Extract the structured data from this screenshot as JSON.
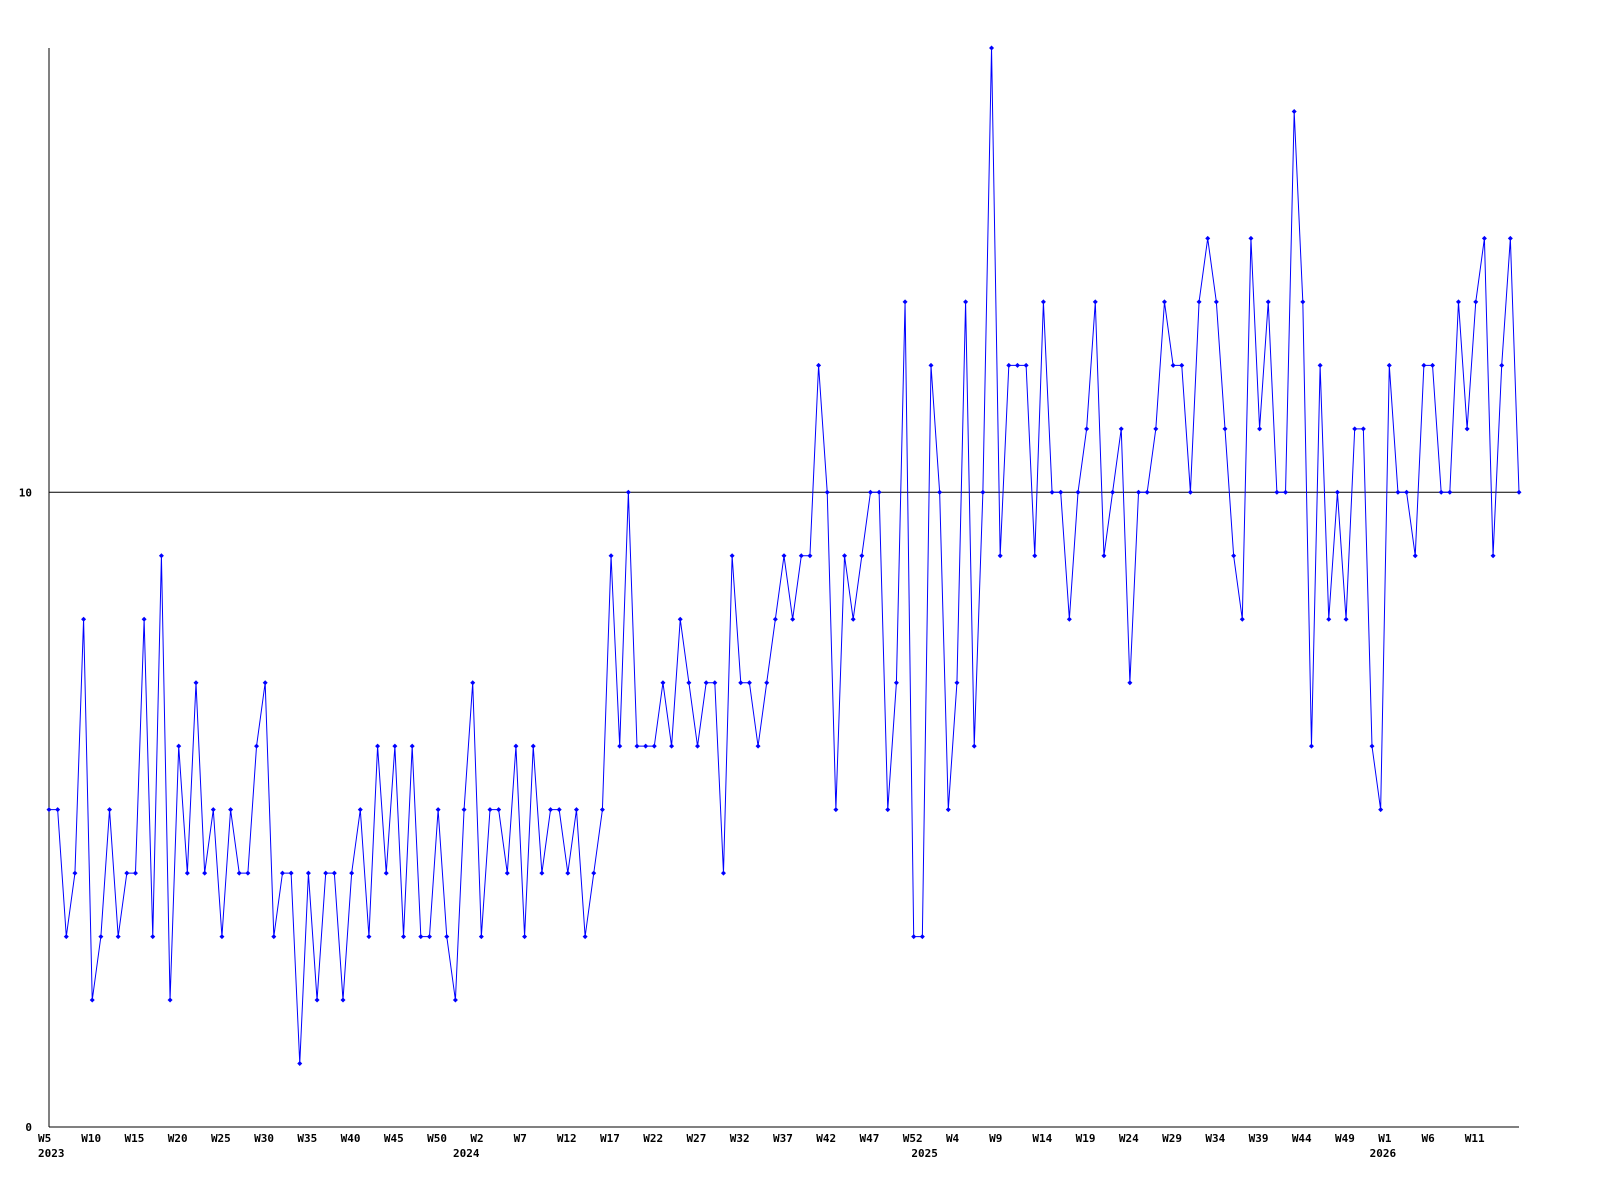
{
  "chart_data": {
    "type": "line",
    "categories": [
      "W5",
      null,
      null,
      null,
      null,
      "W10",
      null,
      null,
      null,
      null,
      "W15",
      null,
      null,
      null,
      null,
      "W20",
      null,
      null,
      null,
      null,
      "W25",
      null,
      null,
      null,
      null,
      "W30",
      null,
      null,
      null,
      null,
      "W35",
      null,
      null,
      null,
      null,
      "W40",
      null,
      null,
      null,
      null,
      "W45",
      null,
      null,
      null,
      null,
      "W50",
      null,
      null,
      null,
      null,
      "W2",
      null,
      null,
      null,
      null,
      "W7",
      null,
      null,
      null,
      null,
      "W12",
      null,
      null,
      null,
      null,
      "W17",
      null,
      null,
      null,
      null,
      "W22",
      null,
      null,
      null,
      null,
      "W27",
      null,
      null,
      null,
      null,
      "W32",
      null,
      null,
      null,
      null,
      "W37",
      null,
      null,
      null,
      null,
      "W42",
      null,
      null,
      null,
      null,
      "W47",
      null,
      null,
      null,
      null,
      "W52",
      null,
      null,
      null,
      null,
      "W4",
      null,
      null,
      null,
      null,
      "W9",
      null,
      null,
      null,
      null,
      "W14",
      null,
      null,
      null,
      null,
      "W19",
      null,
      null,
      null,
      null,
      "W24",
      null,
      null,
      null,
      null,
      "W29",
      null,
      null,
      null,
      null,
      "W34",
      null,
      null,
      null,
      null,
      "W39",
      null,
      null,
      null,
      null,
      "W44",
      null,
      null,
      null,
      null,
      "W49",
      null,
      null,
      null,
      null,
      "W1",
      null,
      null,
      null,
      null,
      "W6",
      null,
      null,
      null,
      null,
      "W11",
      null,
      null,
      null,
      null,
      null
    ],
    "years": [
      "2023",
      null,
      null,
      null,
      null,
      null,
      null,
      null,
      null,
      null,
      null,
      null,
      null,
      null,
      null,
      null,
      null,
      null,
      null,
      null,
      null,
      null,
      null,
      null,
      null,
      null,
      null,
      null,
      null,
      null,
      null,
      null,
      null,
      null,
      null,
      null,
      null,
      null,
      null,
      null,
      null,
      null,
      null,
      null,
      null,
      null,
      null,
      null,
      "2024",
      null,
      null,
      null,
      null,
      null,
      null,
      null,
      null,
      null,
      null,
      null,
      null,
      null,
      null,
      null,
      null,
      null,
      null,
      null,
      null,
      null,
      null,
      null,
      null,
      null,
      null,
      null,
      null,
      null,
      null,
      null,
      null,
      null,
      null,
      null,
      null,
      null,
      null,
      null,
      null,
      null,
      null,
      null,
      null,
      null,
      null,
      null,
      null,
      null,
      null,
      null,
      null,
      "2025",
      null,
      null,
      null,
      null,
      null,
      null,
      null,
      null,
      null,
      null,
      null,
      null,
      null,
      null,
      null,
      null,
      null,
      null,
      null,
      null,
      null,
      null,
      null,
      null,
      null,
      null,
      null,
      null,
      null,
      null,
      null,
      null,
      null,
      null,
      null,
      null,
      null,
      null,
      null,
      null,
      null,
      null,
      null,
      null,
      null,
      null,
      null,
      null,
      null,
      null,
      null,
      null,
      "2026",
      null,
      null,
      null,
      null,
      null,
      null,
      null,
      null,
      null,
      null,
      null,
      null,
      null,
      null,
      null,
      null
    ],
    "series": [
      {
        "color": "#0000ff",
        "values": [
          5,
          5,
          3,
          4,
          8,
          2,
          3,
          5,
          3,
          4,
          4,
          8,
          3,
          9,
          2,
          6,
          4,
          7,
          4,
          5,
          3,
          5,
          4,
          4,
          6,
          7,
          3,
          4,
          4,
          1,
          4,
          2,
          4,
          4,
          2,
          4,
          5,
          3,
          6,
          4,
          6,
          3,
          6,
          3,
          3,
          5,
          3,
          2,
          5,
          7,
          3,
          5,
          5,
          4,
          6,
          3,
          6,
          4,
          5,
          5,
          4,
          5,
          3,
          4,
          5,
          9,
          6,
          10,
          6,
          6,
          6,
          7,
          6,
          8,
          7,
          6,
          7,
          7,
          4,
          9,
          7,
          7,
          6,
          7,
          8,
          9,
          8,
          9,
          9,
          12,
          10,
          5,
          9,
          8,
          9,
          10,
          10,
          5,
          7,
          13,
          3,
          3,
          12,
          10,
          5,
          7,
          13,
          6,
          10,
          17,
          9,
          12,
          12,
          12,
          9,
          13,
          10,
          10,
          8,
          10,
          11,
          13,
          9,
          10,
          11,
          7,
          10,
          10,
          11,
          13,
          12,
          12,
          10,
          13,
          14,
          13,
          11,
          9,
          8,
          14,
          11,
          13,
          10,
          10,
          16,
          13,
          6,
          12,
          8,
          10,
          8,
          11,
          11,
          6,
          5,
          12,
          10,
          10,
          9,
          12,
          12,
          10,
          10,
          13,
          11,
          13,
          14,
          9,
          12,
          14,
          10
        ]
      }
    ],
    "ylim": [
      0,
      17
    ],
    "yticks": [
      0,
      10
    ],
    "grid": true
  }
}
